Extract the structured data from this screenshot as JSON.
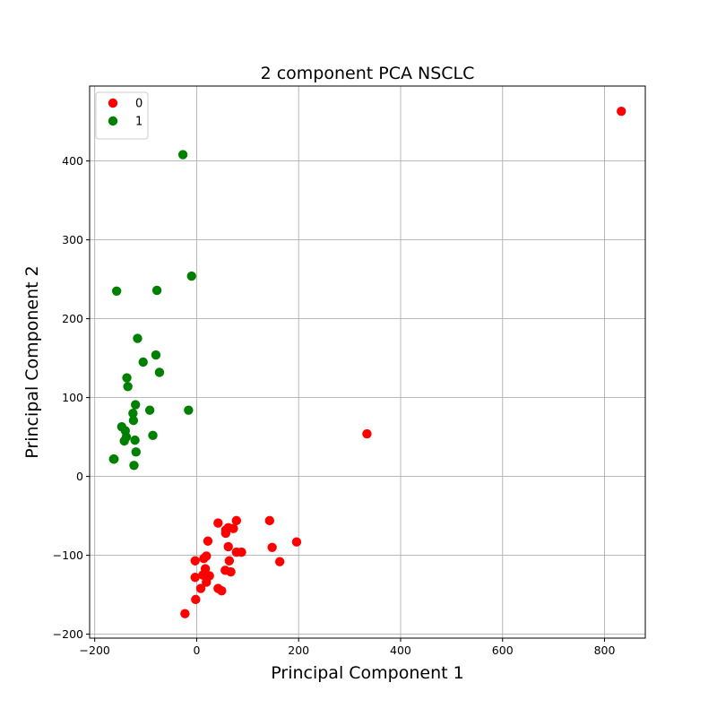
{
  "chart_data": {
    "type": "scatter",
    "title": "2 component PCA NSCLC",
    "xlabel": "Principal Component 1",
    "ylabel": "Principal Component 2",
    "xlim": [
      -210,
      880
    ],
    "ylim": [
      -205,
      495
    ],
    "xticks": [
      -200,
      0,
      200,
      400,
      600,
      800
    ],
    "yticks": [
      -200,
      -100,
      0,
      100,
      200,
      300,
      400
    ],
    "grid": true,
    "legend_position": "top-left",
    "series": [
      {
        "name": "0",
        "color": "#ff0000",
        "points": [
          [
            833,
            463
          ],
          [
            334,
            54
          ],
          [
            42,
            -59
          ],
          [
            78,
            -56
          ],
          [
            143,
            -56
          ],
          [
            196,
            -83
          ],
          [
            148,
            -90
          ],
          [
            163,
            -108
          ],
          [
            57,
            -68
          ],
          [
            57,
            -72
          ],
          [
            62,
            -65
          ],
          [
            72,
            -66
          ],
          [
            22,
            -82
          ],
          [
            62,
            -89
          ],
          [
            78,
            -96
          ],
          [
            88,
            -96
          ],
          [
            64,
            -107
          ],
          [
            56,
            -119
          ],
          [
            67,
            -121
          ],
          [
            14,
            -104
          ],
          [
            19,
            -101
          ],
          [
            -3,
            -107
          ],
          [
            17,
            -117
          ],
          [
            12,
            -125
          ],
          [
            25,
            -126
          ],
          [
            -3,
            -128
          ],
          [
            19,
            -134
          ],
          [
            8,
            -142
          ],
          [
            42,
            -142
          ],
          [
            49,
            -145
          ],
          [
            -2,
            -156
          ],
          [
            -23,
            -174
          ]
        ]
      },
      {
        "name": "1",
        "color": "#008000",
        "points": [
          [
            -27,
            408
          ],
          [
            -10,
            254
          ],
          [
            -157,
            235
          ],
          [
            -78,
            236
          ],
          [
            -116,
            175
          ],
          [
            -80,
            154
          ],
          [
            -105,
            145
          ],
          [
            -73,
            132
          ],
          [
            -137,
            125
          ],
          [
            -135,
            114
          ],
          [
            -120,
            91
          ],
          [
            -92,
            84
          ],
          [
            -16,
            84
          ],
          [
            -125,
            80
          ],
          [
            -124,
            71
          ],
          [
            -147,
            63
          ],
          [
            -140,
            58
          ],
          [
            -138,
            50
          ],
          [
            -142,
            45
          ],
          [
            -121,
            46
          ],
          [
            -86,
            52
          ],
          [
            -163,
            22
          ],
          [
            -162,
            22
          ],
          [
            -119,
            31
          ],
          [
            -123,
            14
          ]
        ]
      }
    ]
  }
}
